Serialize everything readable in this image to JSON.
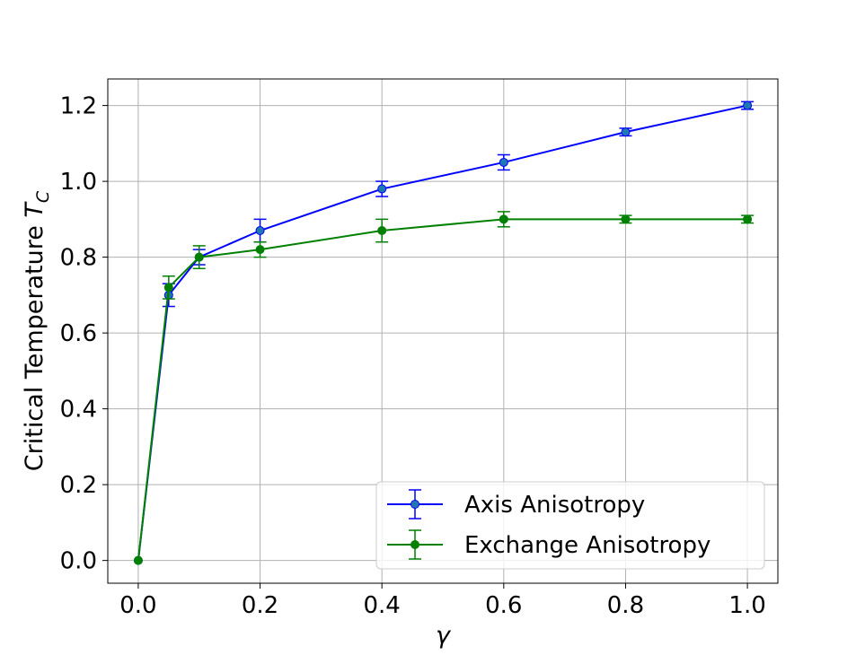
{
  "chart_data": {
    "type": "line",
    "x": [
      0.0,
      0.05,
      0.1,
      0.2,
      0.4,
      0.6,
      0.8,
      1.0
    ],
    "series": [
      {
        "name": "Axis Anisotropy",
        "color": "#0000ff",
        "marker_fill": "#1f77b4",
        "values": [
          0.0,
          0.7,
          0.8,
          0.87,
          0.98,
          1.05,
          1.13,
          1.2
        ],
        "errors": [
          0.0,
          0.03,
          0.02,
          0.03,
          0.02,
          0.02,
          0.01,
          0.01
        ]
      },
      {
        "name": "Exchange Anisotropy",
        "color": "#008000",
        "marker_fill": "#008000",
        "values": [
          0.0,
          0.72,
          0.8,
          0.82,
          0.87,
          0.9,
          0.9,
          0.9
        ],
        "errors": [
          0.0,
          0.03,
          0.03,
          0.02,
          0.03,
          0.02,
          0.01,
          0.01
        ]
      }
    ],
    "xlabel": "γ",
    "ylabel_text": "Critical Temperature ",
    "ylabel_symbol": "T",
    "ylabel_subscript": "C",
    "xlim": [
      -0.05,
      1.05
    ],
    "ylim": [
      -0.06,
      1.27
    ],
    "xticks": [
      0.0,
      0.2,
      0.4,
      0.6,
      0.8,
      1.0
    ],
    "xtick_labels": [
      "0.0",
      "0.2",
      "0.4",
      "0.6",
      "0.8",
      "1.0"
    ],
    "yticks": [
      0.0,
      0.2,
      0.4,
      0.6,
      0.8,
      1.0,
      1.2
    ],
    "ytick_labels": [
      "0.0",
      "0.2",
      "0.4",
      "0.6",
      "0.8",
      "1.0",
      "1.2"
    ],
    "grid": true,
    "legend_position": "lower-right"
  }
}
